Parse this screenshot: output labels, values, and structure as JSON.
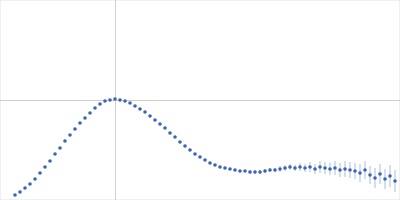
{
  "chart_data": {
    "type": "scatter",
    "color": "#3b64b4",
    "marker": "circle",
    "grid": true,
    "tick_labels": false,
    "xlim": [
      0,
      400
    ],
    "ylim": [
      0,
      200
    ],
    "xticks": [
      115
    ],
    "yticks": [
      100
    ],
    "x": [
      15,
      20,
      25,
      30,
      35,
      40,
      45,
      50,
      55,
      60,
      65,
      70,
      75,
      80,
      85,
      90,
      95,
      100,
      105,
      110,
      115,
      120,
      125,
      130,
      135,
      140,
      145,
      150,
      155,
      160,
      165,
      170,
      175,
      180,
      185,
      190,
      195,
      200,
      205,
      210,
      215,
      220,
      225,
      230,
      235,
      240,
      245,
      250,
      255,
      260,
      265,
      270,
      275,
      280,
      285,
      290,
      295,
      300,
      305,
      310,
      315,
      320,
      325,
      330,
      335,
      340,
      345,
      350,
      355,
      360,
      365,
      370,
      375,
      380,
      385,
      390,
      395
    ],
    "values": [
      5,
      8,
      12,
      16,
      21,
      27,
      33,
      39,
      46,
      52,
      59,
      65,
      71,
      77,
      82,
      87,
      92,
      96,
      99,
      100,
      101,
      100,
      99,
      97,
      94,
      91,
      88,
      84,
      80,
      76,
      72,
      67,
      63,
      58,
      54,
      50,
      46,
      43,
      40,
      37,
      35,
      33,
      32,
      31,
      30,
      29,
      29,
      28,
      28,
      28,
      29,
      30,
      30,
      31,
      32,
      33,
      32,
      33,
      32,
      33,
      31,
      33,
      32,
      31,
      32,
      30,
      31,
      30,
      29,
      27,
      30,
      25,
      22,
      26,
      21,
      24,
      19
    ],
    "errors": [
      1,
      1,
      1,
      1,
      1,
      1,
      1,
      1,
      1,
      1,
      1,
      1,
      1,
      1,
      1,
      1,
      1,
      1,
      1,
      1,
      1,
      1,
      1,
      1,
      1,
      1,
      1,
      1,
      1,
      1,
      1,
      1,
      1,
      1,
      1,
      1,
      1,
      1,
      1,
      1,
      1,
      1,
      1,
      1,
      1,
      1,
      1,
      2,
      2,
      2,
      2,
      2,
      2,
      3,
      3,
      3,
      3,
      4,
      4,
      5,
      5,
      6,
      6,
      6,
      7,
      7,
      8,
      8,
      8,
      9,
      9,
      9,
      10,
      10,
      10,
      11,
      11
    ]
  }
}
